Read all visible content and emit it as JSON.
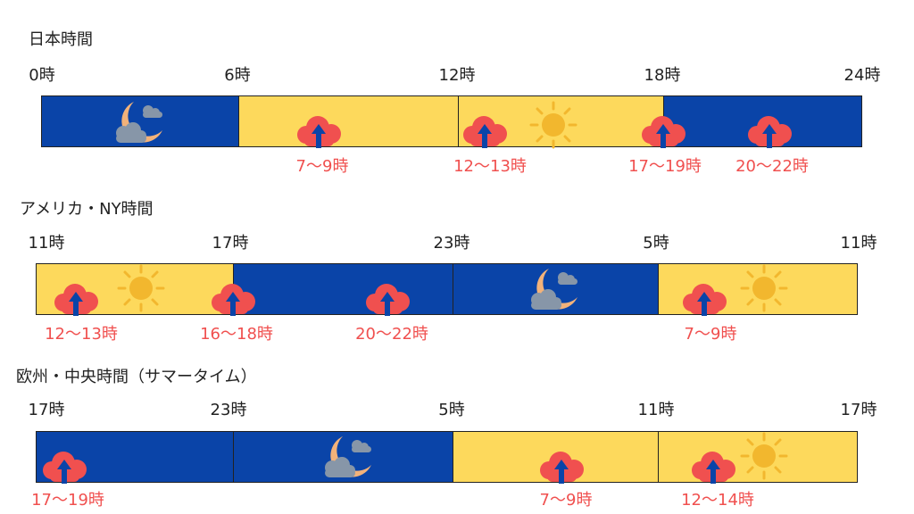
{
  "sections": [
    {
      "title": "日本時間",
      "ticks": [
        "0時",
        "6時",
        "12時",
        "18時",
        "24時"
      ],
      "segments": [
        "day-night:night",
        "day",
        "day",
        "night"
      ],
      "peaks": [
        "7〜9時",
        "12〜13時",
        "17〜19時",
        "20〜22時"
      ]
    },
    {
      "title": "アメリカ・NY時間",
      "ticks": [
        "11時",
        "17時",
        "23時",
        "5時",
        "11時"
      ],
      "peaks": [
        "12〜13時",
        "16〜18時",
        "20〜22時",
        "7〜9時"
      ]
    },
    {
      "title": "欧州・中央時間（サマータイム）",
      "ticks": [
        "17時",
        "23時",
        "5時",
        "11時",
        "17時"
      ],
      "peaks": [
        "17〜19時",
        "7〜9時",
        "12〜14時"
      ]
    }
  ],
  "colors": {
    "day": "#fdd95c",
    "night": "#0a44a8",
    "peak_text": "#f0504f",
    "cloud": "#f0504f",
    "arrow": "#0a44a8",
    "sun": "#f2b72e",
    "moon": "#f2b27a",
    "moon_cloud": "#8796a8"
  },
  "icons": [
    "moon-cloud-icon",
    "sun-icon",
    "cloud-upload-icon"
  ]
}
